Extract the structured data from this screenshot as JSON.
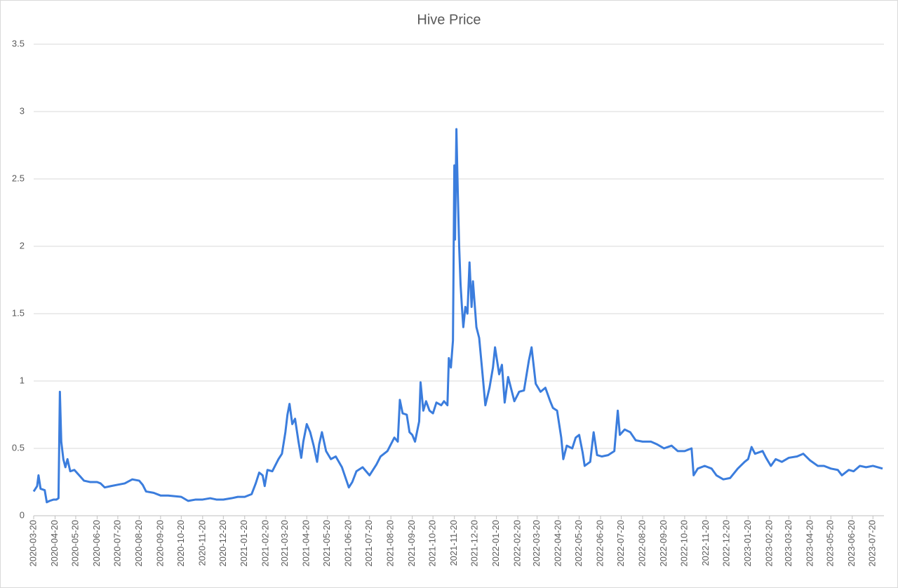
{
  "chart_data": {
    "type": "line",
    "title": "Hive Price",
    "x": [
      "2020-03-20",
      "2020-03-25",
      "2020-03-27",
      "2020-03-30",
      "2020-04-05",
      "2020-04-08",
      "2020-04-12",
      "2020-04-18",
      "2020-04-22",
      "2020-04-25",
      "2020-04-27",
      "2020-04-29",
      "2020-05-02",
      "2020-05-05",
      "2020-05-08",
      "2020-05-12",
      "2020-05-18",
      "2020-05-25",
      "2020-06-01",
      "2020-06-10",
      "2020-06-20",
      "2020-06-25",
      "2020-07-01",
      "2020-07-10",
      "2020-07-20",
      "2020-07-30",
      "2020-08-10",
      "2020-08-20",
      "2020-08-25",
      "2020-08-30",
      "2020-09-10",
      "2020-09-20",
      "2020-10-01",
      "2020-10-20",
      "2020-10-30",
      "2020-11-10",
      "2020-11-20",
      "2020-12-01",
      "2020-12-10",
      "2020-12-20",
      "2021-01-01",
      "2021-01-10",
      "2021-01-20",
      "2021-01-30",
      "2021-02-05",
      "2021-02-10",
      "2021-02-15",
      "2021-02-18",
      "2021-02-22",
      "2021-03-01",
      "2021-03-10",
      "2021-03-15",
      "2021-03-20",
      "2021-03-23",
      "2021-03-26",
      "2021-03-30",
      "2021-04-03",
      "2021-04-08",
      "2021-04-12",
      "2021-04-15",
      "2021-04-20",
      "2021-04-25",
      "2021-04-30",
      "2021-05-05",
      "2021-05-08",
      "2021-05-12",
      "2021-05-18",
      "2021-05-25",
      "2021-06-01",
      "2021-06-10",
      "2021-06-20",
      "2021-06-25",
      "2021-07-01",
      "2021-07-10",
      "2021-07-20",
      "2021-07-30",
      "2021-08-05",
      "2021-08-15",
      "2021-08-25",
      "2021-08-30",
      "2021-09-02",
      "2021-09-06",
      "2021-09-12",
      "2021-09-16",
      "2021-09-20",
      "2021-09-24",
      "2021-09-30",
      "2021-10-02",
      "2021-10-06",
      "2021-10-10",
      "2021-10-15",
      "2021-10-20",
      "2021-10-25",
      "2021-11-01",
      "2021-11-05",
      "2021-11-10",
      "2021-11-12",
      "2021-11-15",
      "2021-11-18",
      "2021-11-20",
      "2021-11-21",
      "2021-11-23",
      "2021-11-25",
      "2021-11-27",
      "2021-11-29",
      "2021-12-01",
      "2021-12-03",
      "2021-12-06",
      "2021-12-09",
      "2021-12-12",
      "2021-12-15",
      "2021-12-17",
      "2021-12-22",
      "2021-12-26",
      "2021-12-30",
      "2022-01-04",
      "2022-01-10",
      "2022-01-15",
      "2022-01-18",
      "2022-01-24",
      "2022-01-28",
      "2022-02-01",
      "2022-02-06",
      "2022-02-10",
      "2022-02-15",
      "2022-02-22",
      "2022-03-01",
      "2022-03-08",
      "2022-03-12",
      "2022-03-18",
      "2022-03-25",
      "2022-04-01",
      "2022-04-08",
      "2022-04-12",
      "2022-04-18",
      "2022-04-24",
      "2022-04-27",
      "2022-05-02",
      "2022-05-10",
      "2022-05-15",
      "2022-05-20",
      "2022-05-25",
      "2022-05-28",
      "2022-06-05",
      "2022-06-10",
      "2022-06-15",
      "2022-06-22",
      "2022-07-01",
      "2022-07-10",
      "2022-07-15",
      "2022-07-18",
      "2022-07-25",
      "2022-08-02",
      "2022-08-10",
      "2022-08-20",
      "2022-09-01",
      "2022-09-10",
      "2022-09-20",
      "2022-10-01",
      "2022-10-10",
      "2022-10-20",
      "2022-10-30",
      "2022-11-02",
      "2022-11-08",
      "2022-11-18",
      "2022-11-28",
      "2022-12-05",
      "2022-12-15",
      "2022-12-25",
      "2023-01-05",
      "2023-01-15",
      "2023-01-20",
      "2023-01-25",
      "2023-01-30",
      "2023-02-10",
      "2023-02-15",
      "2023-02-22",
      "2023-03-01",
      "2023-03-10",
      "2023-03-20",
      "2023-04-01",
      "2023-04-10",
      "2023-04-20",
      "2023-05-01",
      "2023-05-10",
      "2023-05-20",
      "2023-05-30",
      "2023-06-05",
      "2023-06-15",
      "2023-06-22",
      "2023-07-01",
      "2023-07-10",
      "2023-07-20",
      "2023-08-03"
    ],
    "series": [
      {
        "name": "Hive Price",
        "color": "#3b7ddd",
        "values": [
          0.18,
          0.22,
          0.3,
          0.2,
          0.19,
          0.1,
          0.11,
          0.12,
          0.12,
          0.13,
          0.92,
          0.55,
          0.42,
          0.36,
          0.42,
          0.33,
          0.34,
          0.3,
          0.26,
          0.25,
          0.25,
          0.24,
          0.21,
          0.22,
          0.23,
          0.24,
          0.27,
          0.26,
          0.23,
          0.18,
          0.17,
          0.15,
          0.15,
          0.14,
          0.11,
          0.12,
          0.12,
          0.13,
          0.12,
          0.12,
          0.13,
          0.14,
          0.14,
          0.16,
          0.24,
          0.32,
          0.3,
          0.22,
          0.34,
          0.33,
          0.42,
          0.46,
          0.62,
          0.75,
          0.83,
          0.68,
          0.72,
          0.55,
          0.43,
          0.55,
          0.68,
          0.62,
          0.52,
          0.4,
          0.53,
          0.62,
          0.48,
          0.42,
          0.44,
          0.36,
          0.21,
          0.25,
          0.33,
          0.36,
          0.3,
          0.38,
          0.44,
          0.48,
          0.58,
          0.55,
          0.86,
          0.76,
          0.75,
          0.62,
          0.6,
          0.55,
          0.7,
          0.99,
          0.78,
          0.85,
          0.78,
          0.76,
          0.84,
          0.82,
          0.85,
          0.82,
          1.17,
          1.1,
          1.3,
          2.6,
          2.05,
          2.87,
          2.4,
          2.0,
          1.72,
          1.55,
          1.4,
          1.55,
          1.5,
          1.88,
          1.55,
          1.74,
          1.4,
          1.32,
          1.1,
          0.82,
          0.95,
          1.1,
          1.25,
          1.05,
          1.12,
          0.84,
          1.03,
          0.95,
          0.85,
          0.92,
          0.93,
          1.15,
          1.25,
          0.98,
          0.92,
          0.95,
          0.85,
          0.8,
          0.78,
          0.58,
          0.42,
          0.52,
          0.5,
          0.58,
          0.6,
          0.47,
          0.37,
          0.4,
          0.62,
          0.45,
          0.44,
          0.45,
          0.48,
          0.78,
          0.6,
          0.64,
          0.62,
          0.56,
          0.55,
          0.55,
          0.53,
          0.5,
          0.52,
          0.48,
          0.48,
          0.5,
          0.3,
          0.35,
          0.37,
          0.35,
          0.3,
          0.27,
          0.28,
          0.35,
          0.4,
          0.42,
          0.51,
          0.46,
          0.48,
          0.43,
          0.37,
          0.42,
          0.4,
          0.43,
          0.44,
          0.46,
          0.41,
          0.37,
          0.37,
          0.35,
          0.34,
          0.3,
          0.34,
          0.33,
          0.37,
          0.36,
          0.37,
          0.35
        ]
      }
    ],
    "xlim": [
      "2020-03-20",
      "2023-08-05"
    ],
    "xticks": [
      "2020-03-20",
      "2020-04-20",
      "2020-05-20",
      "2020-06-20",
      "2020-07-20",
      "2020-08-20",
      "2020-09-20",
      "2020-10-20",
      "2020-11-20",
      "2020-12-20",
      "2021-01-20",
      "2021-02-20",
      "2021-03-20",
      "2021-04-20",
      "2021-05-20",
      "2021-06-20",
      "2021-07-20",
      "2021-08-20",
      "2021-09-20",
      "2021-10-20",
      "2021-11-20",
      "2021-12-20",
      "2022-01-20",
      "2022-02-20",
      "2022-03-20",
      "2022-04-20",
      "2022-05-20",
      "2022-06-20",
      "2022-07-20",
      "2022-08-20",
      "2022-09-20",
      "2022-10-20",
      "2022-11-20",
      "2022-12-20",
      "2023-01-20",
      "2023-02-20",
      "2023-03-20",
      "2023-04-20",
      "2023-05-20",
      "2023-06-20",
      "2023-07-20"
    ],
    "ylim": [
      0,
      3.5
    ],
    "yticks": [
      0,
      0.5,
      1,
      1.5,
      2,
      2.5,
      3,
      3.5
    ],
    "grid": true
  }
}
